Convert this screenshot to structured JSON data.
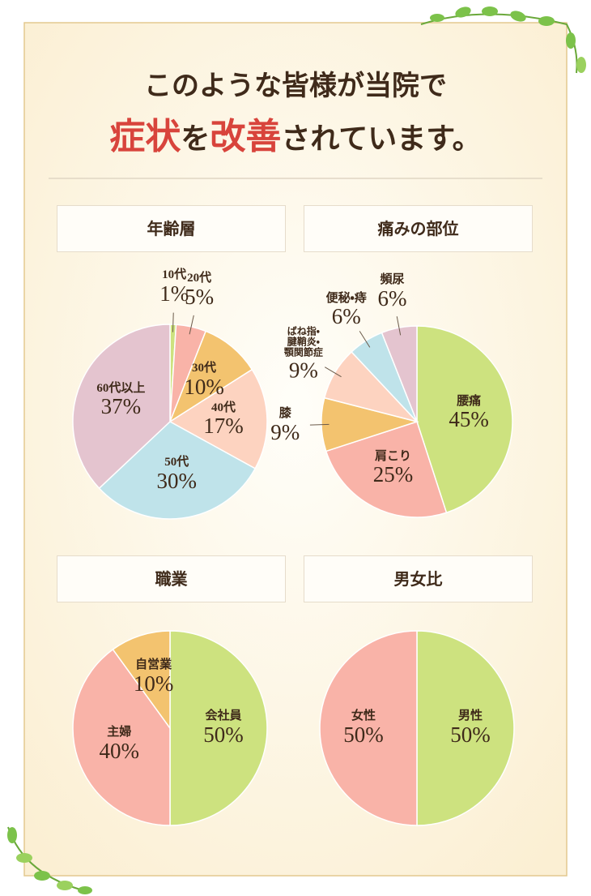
{
  "header": {
    "line1": "このような皆様が当院で",
    "line2": [
      {
        "text": "症状",
        "color": "#d8443c"
      },
      {
        "text": "を",
        "color": "#3f2a1a"
      },
      {
        "text": "改善",
        "color": "#d8443c"
      },
      {
        "text": "されています。",
        "color": "#3f2a1a"
      }
    ]
  },
  "chart_data": [
    {
      "type": "pie",
      "title": "年齢層",
      "categories": [
        "10代",
        "20代",
        "30代",
        "40代",
        "50代",
        "60代以上"
      ],
      "values": [
        1,
        5,
        10,
        17,
        30,
        37
      ],
      "value_labels": [
        "1%",
        "5%",
        "10%",
        "17%",
        "30%",
        "37%"
      ],
      "colors": [
        "#cde27f",
        "#f9b3a8",
        "#f3c36f",
        "#fdd3c0",
        "#bfe3ea",
        "#e4c4cf"
      ]
    },
    {
      "type": "pie",
      "title": "痛みの部位",
      "categories": [
        "腰痛",
        "肩こり",
        "膝",
        "ばね指・腱鞘炎・顎関節症",
        "便秘・痔",
        "頻尿"
      ],
      "values": [
        45,
        25,
        9,
        9,
        6,
        6
      ],
      "value_labels": [
        "45%",
        "25%",
        "9%",
        "9%",
        "6%",
        "6%"
      ],
      "colors": [
        "#cde27f",
        "#f9b3a8",
        "#f3c36f",
        "#fdd3c0",
        "#bfe3ea",
        "#e4c4cf"
      ]
    },
    {
      "type": "pie",
      "title": "職業",
      "categories": [
        "会社員",
        "主婦",
        "自営業"
      ],
      "values": [
        50,
        40,
        10
      ],
      "value_labels": [
        "50%",
        "40%",
        "10%"
      ],
      "colors": [
        "#cde27f",
        "#f9b3a8",
        "#f3c36f"
      ]
    },
    {
      "type": "pie",
      "title": "男女比",
      "categories": [
        "男性",
        "女性"
      ],
      "values": [
        50,
        50
      ],
      "value_labels": [
        "50%",
        "50%"
      ],
      "colors": [
        "#cde27f",
        "#f9b3a8"
      ]
    }
  ]
}
